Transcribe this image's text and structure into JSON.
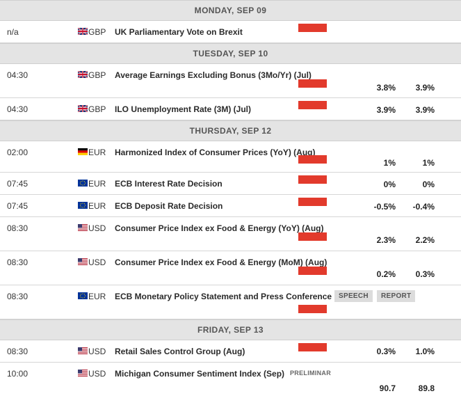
{
  "colors": {
    "impact_high": "#e23a2c",
    "day_header_bg": "#e4e4e4",
    "tag_bg": "#dcdcdc"
  },
  "days": [
    {
      "label": "MONDAY, SEP 09",
      "events": [
        {
          "time": "n/a",
          "flag": "uk-flag-icon",
          "currency": "GBP",
          "name": "UK Parliamentary Vote on Brexit",
          "impact": "high",
          "previous": "",
          "consensus": ""
        }
      ]
    },
    {
      "label": "TUESDAY, SEP 10",
      "events": [
        {
          "time": "04:30",
          "flag": "uk-flag-icon",
          "currency": "GBP",
          "name": "Average Earnings Excluding Bonus (3Mo/Yr) (Jul)",
          "impact": "high",
          "previous": "3.8%",
          "consensus": "3.9%"
        },
        {
          "time": "04:30",
          "flag": "uk-flag-icon",
          "currency": "GBP",
          "name": "ILO Unemployment Rate (3M) (Jul)",
          "impact": "high",
          "previous": "3.9%",
          "consensus": "3.9%"
        }
      ]
    },
    {
      "label": "THURSDAY, SEP 12",
      "events": [
        {
          "time": "02:00",
          "flag": "germany-flag-icon",
          "currency": "EUR",
          "name": "Harmonized Index of Consumer Prices (YoY) (Aug)",
          "impact": "high",
          "previous": "1%",
          "consensus": "1%"
        },
        {
          "time": "07:45",
          "flag": "eu-flag-icon",
          "currency": "EUR",
          "name": "ECB Interest Rate Decision",
          "impact": "high",
          "previous": "0%",
          "consensus": "0%"
        },
        {
          "time": "07:45",
          "flag": "eu-flag-icon",
          "currency": "EUR",
          "name": "ECB Deposit Rate Decision",
          "impact": "high",
          "previous": "-0.5%",
          "consensus": "-0.4%"
        },
        {
          "time": "08:30",
          "flag": "us-flag-icon",
          "currency": "USD",
          "name": "Consumer Price Index ex Food & Energy (YoY) (Aug)",
          "impact": "high",
          "previous": "2.3%",
          "consensus": "2.2%"
        },
        {
          "time": "08:30",
          "flag": "us-flag-icon",
          "currency": "USD",
          "name": "Consumer Price Index ex Food & Energy (MoM) (Aug)",
          "impact": "high",
          "previous": "0.2%",
          "consensus": "0.3%"
        },
        {
          "time": "08:30",
          "flag": "eu-flag-icon",
          "currency": "EUR",
          "name": "ECB Monetary Policy Statement and Press Conference",
          "impact": "high",
          "previous": "",
          "consensus": "",
          "tags": [
            "SPEECH",
            "REPORT"
          ]
        }
      ]
    },
    {
      "label": "FRIDAY, SEP 13",
      "events": [
        {
          "time": "08:30",
          "flag": "us-flag-icon",
          "currency": "USD",
          "name": "Retail Sales Control Group (Aug)",
          "impact": "high",
          "previous": "0.3%",
          "consensus": "1.0%"
        },
        {
          "time": "10:00",
          "flag": "us-flag-icon",
          "currency": "USD",
          "name": "Michigan Consumer Sentiment Index (Sep)",
          "impact": "",
          "previous": "90.7",
          "consensus": "89.8",
          "note": "PRELIMINAR"
        }
      ]
    }
  ]
}
